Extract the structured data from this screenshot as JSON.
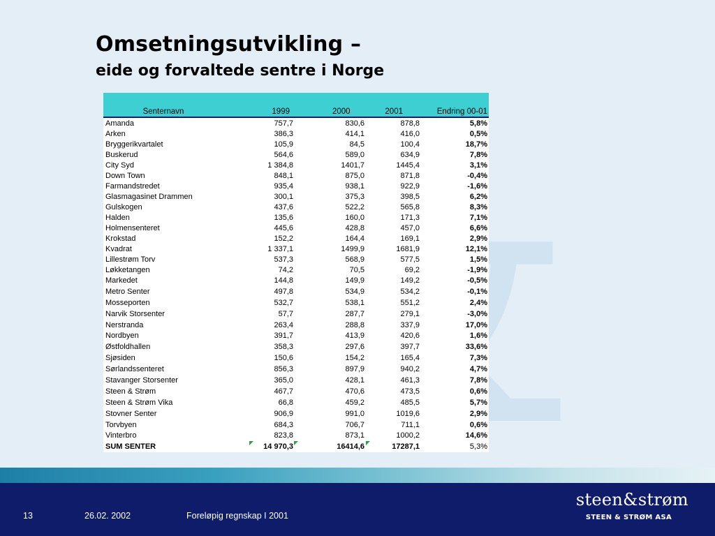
{
  "title": "Omsetningsutvikling –",
  "subtitle": "eide og forvaltede sentre i Norge",
  "table": {
    "headers": {
      "name": "Senternavn",
      "y1999": "1999",
      "y2000": "2000",
      "y2001": "2001",
      "change": "Endring 00-01"
    },
    "rows": [
      [
        "Amanda",
        "757,7",
        "830,6",
        "878,8",
        "5,8%"
      ],
      [
        "Arken",
        "386,3",
        "414,1",
        "416,0",
        "0,5%"
      ],
      [
        "Bryggerikvartalet",
        "105,9",
        "84,5",
        "100,4",
        "18,7%"
      ],
      [
        "Buskerud",
        "564,6",
        "589,0",
        "634,9",
        "7,8%"
      ],
      [
        "City Syd",
        "1 384,8",
        "1401,7",
        "1445,4",
        "3,1%"
      ],
      [
        "Down Town",
        "848,1",
        "875,0",
        "871,8",
        "-0,4%"
      ],
      [
        "Farmandstredet",
        "935,4",
        "938,1",
        "922,9",
        "-1,6%"
      ],
      [
        "Glasmagasinet Drammen",
        "300,1",
        "375,3",
        "398,5",
        "6,2%"
      ],
      [
        "Gulskogen",
        "437,6",
        "522,2",
        "565,8",
        "8,3%"
      ],
      [
        "Halden",
        "135,6",
        "160,0",
        "171,3",
        "7,1%"
      ],
      [
        "Holmensenteret",
        "445,6",
        "428,8",
        "457,0",
        "6,6%"
      ],
      [
        "Krokstad",
        "152,2",
        "164,4",
        "169,1",
        "2,9%"
      ],
      [
        "Kvadrat",
        "1 337,1",
        "1499,9",
        "1681,9",
        "12,1%"
      ],
      [
        "Lillestrøm Torv",
        "537,3",
        "568,9",
        "577,5",
        "1,5%"
      ],
      [
        "Løkketangen",
        "74,2",
        "70,5",
        "69,2",
        "-1,9%"
      ],
      [
        "Markedet",
        "144,8",
        "149,9",
        "149,2",
        "-0,5%"
      ],
      [
        "Metro Senter",
        "497,8",
        "534,9",
        "534,2",
        "-0,1%"
      ],
      [
        "Mosseporten",
        "532,7",
        "538,1",
        "551,2",
        "2,4%"
      ],
      [
        "Narvik Storsenter",
        "57,7",
        "287,7",
        "279,1",
        "-3,0%"
      ],
      [
        "Nerstranda",
        "263,4",
        "288,8",
        "337,9",
        "17,0%"
      ],
      [
        "Nordbyen",
        "391,7",
        "413,9",
        "420,6",
        "1,6%"
      ],
      [
        "Østfoldhallen",
        "358,3",
        "297,6",
        "397,7",
        "33,6%"
      ],
      [
        "Sjøsiden",
        "150,6",
        "154,2",
        "165,4",
        "7,3%"
      ],
      [
        "Sørlandssenteret",
        "856,3",
        "897,9",
        "940,2",
        "4,7%"
      ],
      [
        "Stavanger Storsenter",
        "365,0",
        "428,1",
        "461,3",
        "7,8%"
      ],
      [
        "Steen & Strøm",
        "467,7",
        "470,6",
        "473,5",
        "0,6%"
      ],
      [
        "Steen & Strøm Vika",
        "66,8",
        "459,2",
        "485,5",
        "5,7%"
      ],
      [
        "Stovner Senter",
        "906,9",
        "991,0",
        "1019,6",
        "2,9%"
      ],
      [
        "Torvbyen",
        "684,3",
        "706,7",
        "711,1",
        "0,6%"
      ],
      [
        "Vinterbro",
        "823,8",
        "873,1",
        "1000,2",
        "14,6%"
      ]
    ],
    "sum": [
      "SUM SENTER",
      "14 970,3",
      "16414,6",
      "17287,1",
      "5,3%"
    ]
  },
  "footer": {
    "page": "13",
    "date": "26.02. 2002",
    "text": "Foreløpig regnskap I 2001"
  },
  "logo": {
    "main": "steen&strøm",
    "sub": "STEEN & STRØM ASA"
  },
  "colors": {
    "header_bg": "#3ecfd3",
    "footer_bg": "#0f1c6a",
    "marker": "#2ea04a"
  }
}
